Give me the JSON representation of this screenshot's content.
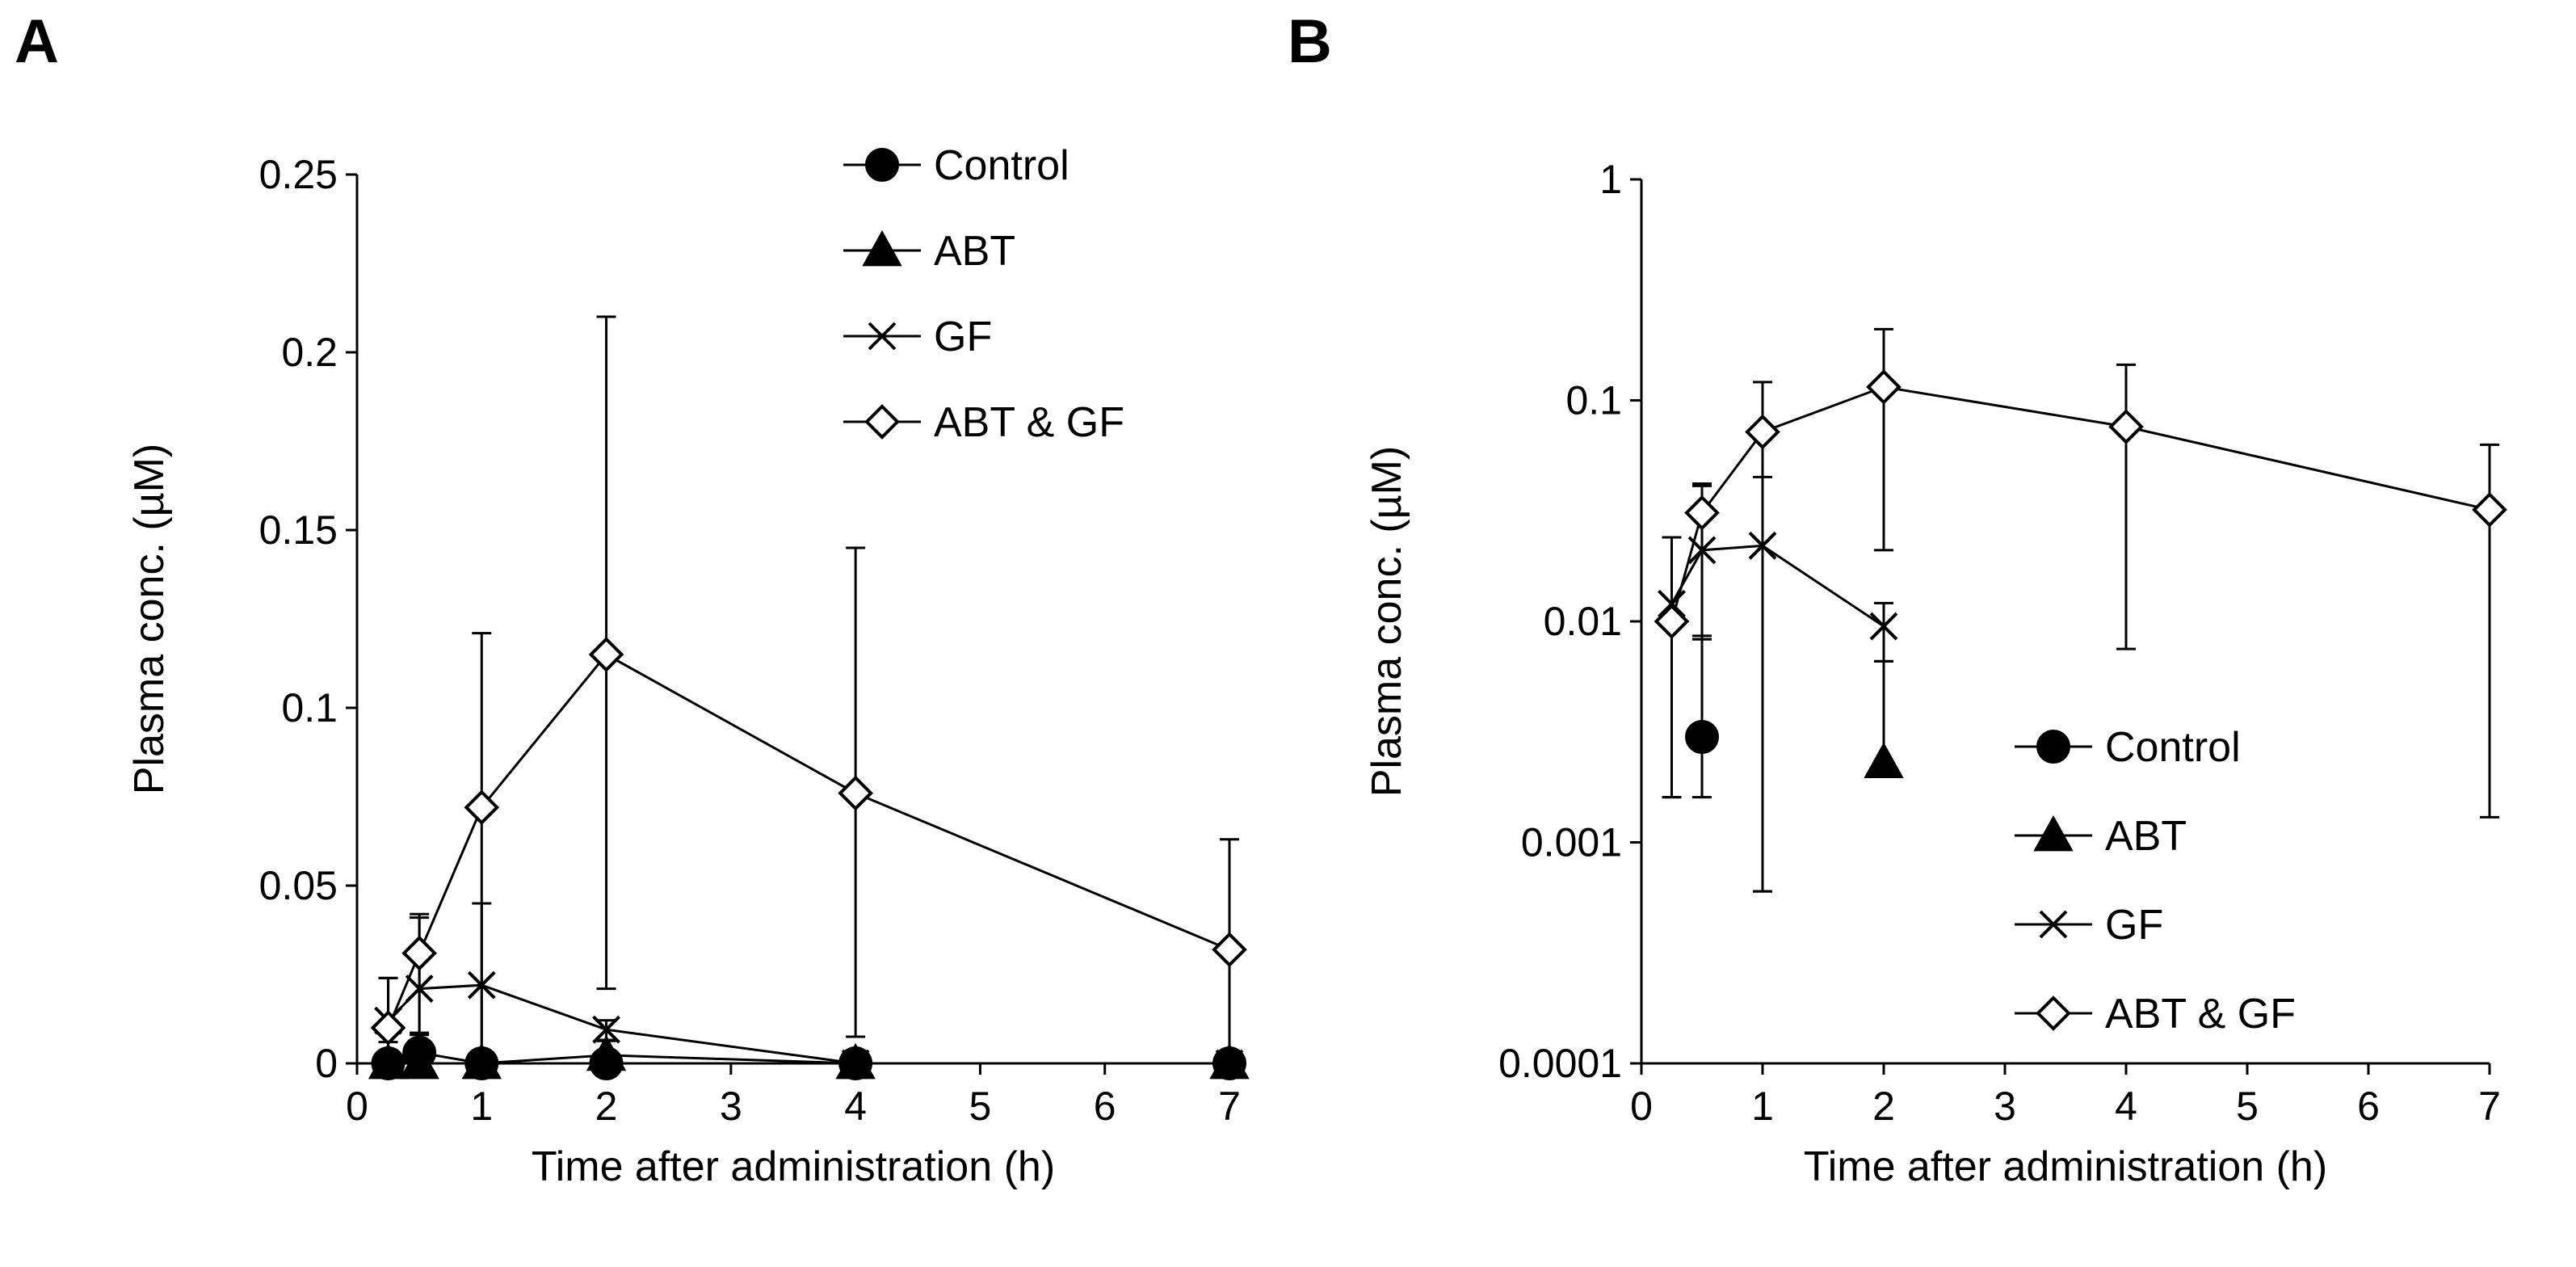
{
  "figure": {
    "panels": [
      {
        "letter": "A"
      },
      {
        "letter": "B"
      }
    ]
  },
  "colors": {
    "ink": "#000000",
    "paper": "#ffffff"
  },
  "chart_data": [
    {
      "id": "A",
      "type": "line",
      "scale": "linear",
      "xlabel": "Time after administration (h)",
      "ylabel": "Plasma conc. (µM)",
      "xlim": [
        0,
        7
      ],
      "ylim": [
        0,
        0.25
      ],
      "xticks": [
        0,
        1,
        2,
        3,
        4,
        5,
        6,
        7
      ],
      "xtick_labels": [
        "0",
        "1",
        "2",
        "3",
        "4",
        "5",
        "6",
        "7"
      ],
      "yticks": [
        0,
        0.05,
        0.1,
        0.15,
        0.2,
        0.25
      ],
      "ytick_labels": [
        "0",
        "0.05",
        "0.1",
        "0.15",
        "0.2",
        "0.25"
      ],
      "legend_position": "top-right",
      "series": [
        {
          "name": "Control",
          "marker": "filled-circle",
          "x": [
            0.25,
            0.5,
            1,
            2,
            4,
            7
          ],
          "y": [
            0,
            0.003,
            0,
            0,
            0,
            0
          ],
          "err_low": [
            0,
            0.0014,
            0,
            0,
            0,
            0
          ],
          "err_high": [
            0,
            0.002,
            0,
            0,
            0,
            0
          ]
        },
        {
          "name": "ABT",
          "marker": "filled-triangle",
          "x": [
            0.25,
            0.5,
            1,
            2,
            4,
            7
          ],
          "y": [
            0,
            0,
            0,
            0.0023,
            0,
            0
          ],
          "err_low": [
            0,
            0,
            0,
            0,
            0,
            0
          ],
          "err_high": [
            0,
            0,
            0,
            0.004,
            0,
            0
          ]
        },
        {
          "name": "GF",
          "marker": "cross",
          "x": [
            0.25,
            0.5,
            1,
            2,
            4,
            7
          ],
          "y": [
            0.012,
            0.021,
            0.022,
            0.0095,
            0,
            0
          ],
          "err_low": [
            0.006,
            0.013,
            0.0224,
            0.0029,
            0,
            0
          ],
          "err_high": [
            0.012,
            0.02,
            0.023,
            0.0026,
            0,
            0
          ]
        },
        {
          "name": "ABT & GF",
          "marker": "open-diamond",
          "x": [
            0.25,
            0.5,
            1,
            2,
            4,
            7
          ],
          "y": [
            0.01,
            0.031,
            0.072,
            0.115,
            0.076,
            0.032
          ],
          "err_low": [
            0.0084,
            0.0224,
            0.0714,
            0.094,
            0.0685,
            0.0307
          ],
          "err_high": [
            0.014,
            0.011,
            0.049,
            0.095,
            0.069,
            0.031
          ]
        }
      ]
    },
    {
      "id": "B",
      "type": "line",
      "scale": "log",
      "xlabel": "Time after administration (h)",
      "ylabel": "Plasma conc. (µM)",
      "xlim": [
        0,
        7
      ],
      "ylim": [
        0.0001,
        1
      ],
      "xticks": [
        0,
        1,
        2,
        3,
        4,
        5,
        6,
        7
      ],
      "xtick_labels": [
        "0",
        "1",
        "2",
        "3",
        "4",
        "5",
        "6",
        "7"
      ],
      "yticks": [
        0.0001,
        0.001,
        0.01,
        0.1,
        1
      ],
      "ytick_labels": [
        "0.0001",
        "0.001",
        "0.01",
        "0.1",
        "1"
      ],
      "legend_position": "bottom-right",
      "series": [
        {
          "name": "Control",
          "marker": "filled-circle",
          "x": [
            0.5
          ],
          "y": [
            0.003
          ],
          "err_low": [
            0.0014
          ],
          "err_high": [
            0.0053
          ]
        },
        {
          "name": "ABT",
          "marker": "filled-triangle",
          "x": [
            2
          ],
          "y": [
            0.0023
          ],
          "err_low": [
            0
          ],
          "err_high": [
            0.0043
          ]
        },
        {
          "name": "GF",
          "marker": "cross",
          "x": [
            0.25,
            0.5,
            1,
            2
          ],
          "y": [
            0.012,
            0.021,
            0.022,
            0.0095
          ],
          "err_low": [
            0.0104,
            0.0127,
            0.0214,
            0.0029
          ],
          "err_high": [
            0.012,
            0.02,
            0.023,
            0.0026
          ]
        },
        {
          "name": "ABT & GF",
          "marker": "open-diamond",
          "x": [
            0.25,
            0.5,
            1,
            2,
            4,
            7
          ],
          "y": [
            0.01,
            0.031,
            0.072,
            0.115,
            0.076,
            0.032
          ],
          "err_low": [
            0.0084,
            0.0224,
            0.0714,
            0.094,
            0.0685,
            0.0307
          ],
          "err_high": [
            0.014,
            0.011,
            0.049,
            0.095,
            0.069,
            0.031
          ]
        }
      ]
    }
  ]
}
